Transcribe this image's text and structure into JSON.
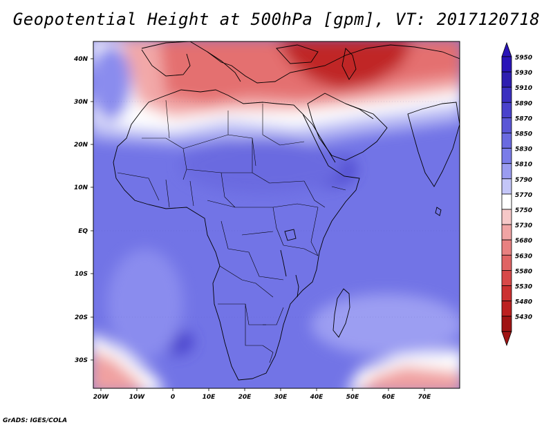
{
  "title": "Geopotential Height at 500hPa [gpm], VT: 2017120718",
  "credit": "GrADS: IGES/COLA",
  "axes": {
    "lat_labels": [
      "40N",
      "30N",
      "20N",
      "10N",
      "EQ",
      "10S",
      "20S",
      "30S"
    ],
    "lon_labels": [
      "20W",
      "10W",
      "0",
      "10E",
      "20E",
      "30E",
      "40E",
      "50E",
      "60E",
      "70E"
    ]
  },
  "colorbar": {
    "levels": [
      "5950",
      "5930",
      "5910",
      "5890",
      "5870",
      "5850",
      "5830",
      "5810",
      "5790",
      "5770",
      "5750",
      "5730",
      "5680",
      "5630",
      "5580",
      "5530",
      "5480",
      "5430"
    ],
    "colors": [
      "#2a14b8",
      "#2e1eb0",
      "#3b30c0",
      "#4a42cc",
      "#5a56d6",
      "#6a6ae0",
      "#7a7ce8",
      "#9a9cf0",
      "#c4c6f8",
      "#ffffff",
      "#f6c8c8",
      "#f0a4a4",
      "#e88080",
      "#e06464",
      "#d84848",
      "#cc3030",
      "#bc2020",
      "#a01414"
    ]
  },
  "field_colors": {
    "deep_red": "#c02828",
    "red": "#e47070",
    "light_red": "#f2a8a8",
    "white": "#ffffff",
    "light_blue": "#b8baf4",
    "blue": "#8082ec",
    "mid_blue": "#6a6ae0",
    "deep_blue": "#4a42cc"
  }
}
